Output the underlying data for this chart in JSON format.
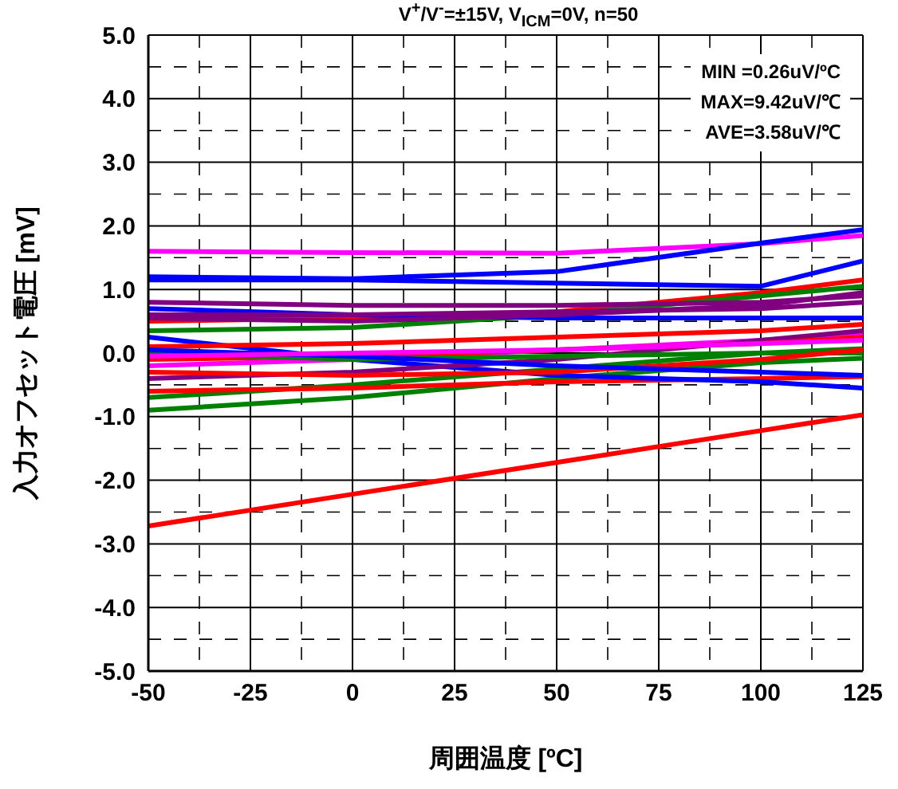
{
  "chart_data": {
    "type": "line",
    "title": "V$^{+}$/V$^{-}$=±15V, V$_{ICM}$=0V, n=50",
    "xlabel": "周囲温度 [ºC]",
    "ylabel": "入力オフセット電圧 [mV]",
    "annotations": [
      "MIN =0.26uV/ºC",
      "MAX=9.42uV/℃",
      "AVE=3.58uV/℃"
    ],
    "x": [
      -50,
      0,
      50,
      100,
      125
    ],
    "series": [
      {
        "color": "#ff00ff",
        "values": [
          1.6,
          1.58,
          1.57,
          1.72,
          1.85
        ]
      },
      {
        "color": "#0000ff",
        "values": [
          1.2,
          1.17,
          1.28,
          1.73,
          1.94
        ]
      },
      {
        "color": "#0000ff",
        "values": [
          1.15,
          1.15,
          1.1,
          1.05,
          1.45
        ]
      },
      {
        "color": "#ff0000",
        "values": [
          -2.72,
          -2.22,
          -1.72,
          -1.22,
          -0.97
        ]
      },
      {
        "color": "#008000",
        "values": [
          -0.9,
          -0.7,
          -0.4,
          -0.15,
          -0.08
        ]
      },
      {
        "color": "#008000",
        "values": [
          -0.7,
          -0.5,
          -0.25,
          0.0,
          0.07
        ]
      },
      {
        "color": "#ff0000",
        "values": [
          -0.6,
          -0.55,
          -0.45,
          -0.4,
          -0.37
        ]
      },
      {
        "color": "#0000ff",
        "values": [
          0.25,
          -0.1,
          -0.35,
          -0.45,
          -0.55
        ]
      },
      {
        "color": "#ff0000",
        "values": [
          0.5,
          0.55,
          0.65,
          0.95,
          1.15
        ]
      },
      {
        "color": "#008000",
        "values": [
          0.35,
          0.4,
          0.6,
          0.9,
          1.05
        ]
      },
      {
        "color": "#ff00ff",
        "values": [
          -0.2,
          -0.1,
          0.05,
          0.2,
          0.3
        ]
      },
      {
        "color": "#ff0000",
        "values": [
          0.1,
          0.15,
          0.25,
          0.35,
          0.45
        ]
      },
      {
        "color": "#0000ff",
        "values": [
          0.7,
          0.6,
          0.55,
          0.55,
          0.55
        ]
      },
      {
        "color": "#800080",
        "values": [
          0.8,
          0.75,
          0.75,
          0.8,
          0.9
        ]
      },
      {
        "color": "#800080",
        "values": [
          0.6,
          0.6,
          0.65,
          0.7,
          0.8
        ]
      },
      {
        "color": "#800080",
        "values": [
          0.55,
          0.5,
          0.6,
          0.75,
          0.95
        ]
      },
      {
        "color": "#800080",
        "values": [
          -0.4,
          -0.3,
          -0.1,
          0.2,
          0.35
        ]
      },
      {
        "color": "#ff0000",
        "values": [
          -0.1,
          -0.05,
          0.05,
          0.15,
          0.25
        ]
      },
      {
        "color": "#008000",
        "values": [
          0.0,
          -0.1,
          -0.05,
          0.0,
          0.0
        ]
      },
      {
        "color": "#ff0000",
        "values": [
          -0.3,
          -0.35,
          -0.3,
          -0.1,
          0.05
        ]
      },
      {
        "color": "#0000ff",
        "values": [
          0.05,
          -0.05,
          -0.2,
          -0.3,
          -0.35
        ]
      },
      {
        "color": "#ff00ff",
        "values": [
          -0.05,
          0.0,
          0.05,
          0.15,
          0.2
        ]
      }
    ],
    "xlim": [
      -50,
      125
    ],
    "xticks": [
      -50,
      -25,
      0,
      25,
      50,
      75,
      100,
      125
    ],
    "ylim": [
      -5,
      5
    ],
    "yticks": [
      {
        "value": -5,
        "label": "-5.0"
      },
      {
        "value": -4,
        "label": "-4.0"
      },
      {
        "value": -3,
        "label": "-3.0"
      },
      {
        "value": -2,
        "label": "-2.0"
      },
      {
        "value": -1,
        "label": "-1.0"
      },
      {
        "value": 0,
        "label": "0.0"
      },
      {
        "value": 1,
        "label": "1.0"
      },
      {
        "value": 2,
        "label": "2.0"
      },
      {
        "value": 3,
        "label": "3.0"
      },
      {
        "value": 4,
        "label": "4.0"
      },
      {
        "value": 5,
        "label": "5.0"
      }
    ],
    "grid": true,
    "marker": "none",
    "line_style": "solid"
  }
}
